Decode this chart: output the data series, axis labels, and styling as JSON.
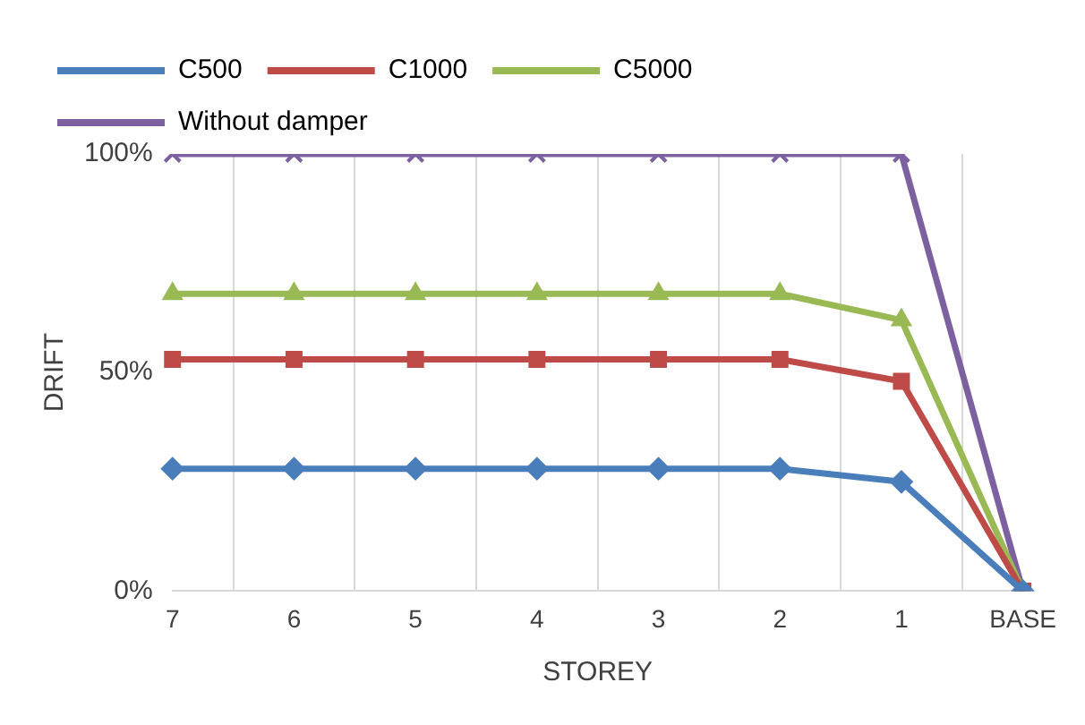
{
  "chart_data": {
    "type": "line",
    "xlabel": "STOREY",
    "ylabel": "DRIFT",
    "categories": [
      "7",
      "6",
      "5",
      "4",
      "3",
      "2",
      "1",
      "BASE"
    ],
    "series": [
      {
        "name": "C500",
        "color": "#4a7ebb",
        "marker": "diamond",
        "values": [
          28,
          28,
          28,
          28,
          28,
          28,
          25,
          0
        ]
      },
      {
        "name": "C1000",
        "color": "#be4b48",
        "marker": "square",
        "values": [
          53,
          53,
          53,
          53,
          53,
          53,
          48,
          0
        ]
      },
      {
        "name": "C5000",
        "color": "#98b954",
        "marker": "triangle",
        "values": [
          68,
          68,
          68,
          68,
          68,
          68,
          62,
          0
        ]
      },
      {
        "name": "Without damper",
        "color": "#7d60a0",
        "marker": "cross",
        "values": [
          100,
          100,
          100,
          100,
          100,
          100,
          100,
          0
        ]
      }
    ],
    "ylim": [
      0,
      100
    ],
    "yticks": [
      {
        "value": 0,
        "label": "0%"
      },
      {
        "value": 50,
        "label": "50%"
      },
      {
        "value": 100,
        "label": "100%"
      }
    ],
    "grid": "x",
    "legend": "top"
  }
}
